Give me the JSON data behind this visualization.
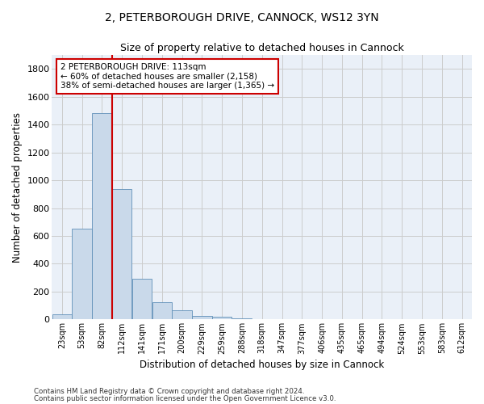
{
  "title1": "2, PETERBOROUGH DRIVE, CANNOCK, WS12 3YN",
  "title2": "Size of property relative to detached houses in Cannock",
  "xlabel": "Distribution of detached houses by size in Cannock",
  "ylabel": "Number of detached properties",
  "bin_labels": [
    "23sqm",
    "53sqm",
    "82sqm",
    "112sqm",
    "141sqm",
    "171sqm",
    "200sqm",
    "229sqm",
    "259sqm",
    "288sqm",
    "318sqm",
    "347sqm",
    "377sqm",
    "406sqm",
    "435sqm",
    "465sqm",
    "494sqm",
    "524sqm",
    "553sqm",
    "583sqm",
    "612sqm"
  ],
  "bar_heights": [
    40,
    650,
    1480,
    935,
    290,
    125,
    65,
    25,
    20,
    10,
    5,
    3,
    2,
    1,
    0,
    0,
    0,
    0,
    0,
    0,
    0
  ],
  "bar_color": "#c9d9ea",
  "bar_edge_color": "#6090b8",
  "grid_color": "#cccccc",
  "background_color": "#eaf0f8",
  "property_line_x": 2,
  "annotation_text": "2 PETERBOROUGH DRIVE: 113sqm\n← 60% of detached houses are smaller (2,158)\n38% of semi-detached houses are larger (1,365) →",
  "annotation_box_color": "#ffffff",
  "annotation_box_edge": "#cc0000",
  "line_color": "#cc0000",
  "ylim": [
    0,
    1900
  ],
  "yticks": [
    0,
    200,
    400,
    600,
    800,
    1000,
    1200,
    1400,
    1600,
    1800
  ],
  "footer1": "Contains HM Land Registry data © Crown copyright and database right 2024.",
  "footer2": "Contains public sector information licensed under the Open Government Licence v3.0."
}
